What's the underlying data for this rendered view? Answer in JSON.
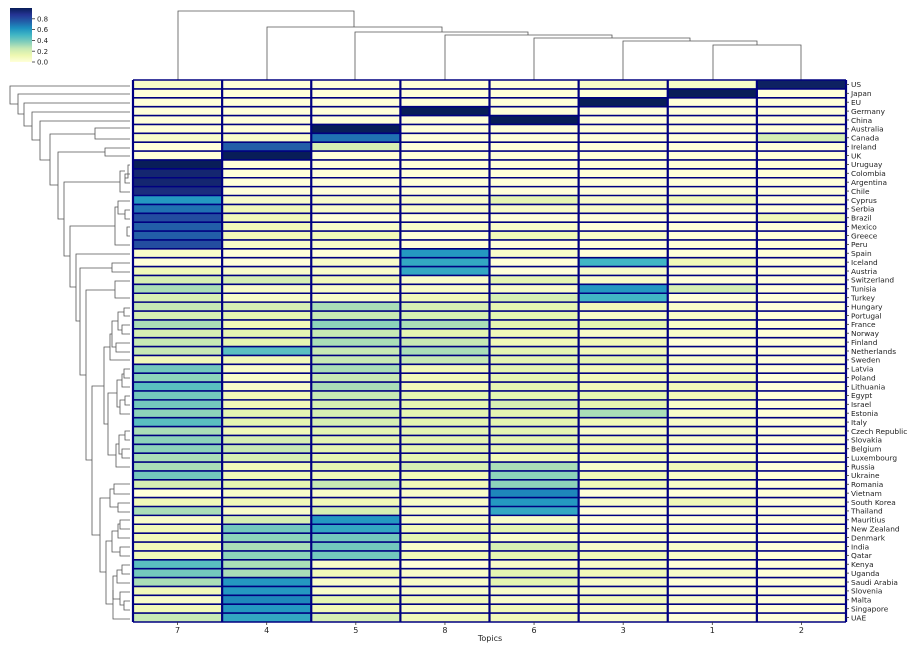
{
  "chart_data": {
    "type": "heatmap",
    "title": "",
    "xlabel": "Topics",
    "ylabel": "",
    "colormap": "YlGnBu",
    "vmin": 0.0,
    "vmax": 1.0,
    "colorbar_ticks": [
      "0.0",
      "0.2",
      "0.4",
      "0.6",
      "0.8"
    ],
    "colorbar_tick_values": [
      0.0,
      0.2,
      0.4,
      0.6,
      0.8
    ],
    "cell_border_color": "#000080",
    "columns": [
      "7",
      "4",
      "5",
      "8",
      "6",
      "3",
      "1",
      "2"
    ],
    "rows": [
      "US",
      "Japan",
      "EU",
      "Germany",
      "China",
      "Australia",
      "Canada",
      "Ireland",
      "UK",
      "Uruguay",
      "Colombia",
      "Argentina",
      "Chile",
      "Cyprus",
      "Serbia",
      "Brazil",
      "Mexico",
      "Greece",
      "Peru",
      "Spain",
      "Iceland",
      "Austria",
      "Switzerland",
      "Tunisia",
      "Turkey",
      "Hungary",
      "Portugal",
      "France",
      "Norway",
      "Finland",
      "Netherlands",
      "Sweden",
      "Latvia",
      "Poland",
      "Lithuania",
      "Egypt",
      "Israel",
      "Estonia",
      "Italy",
      "Czech Republic",
      "Slovakia",
      "Belgium",
      "Luxembourg",
      "Russia",
      "Ukraine",
      "Romania",
      "Vietnam",
      "South Korea",
      "Thailand",
      "Mauritius",
      "New Zealand",
      "Denmark",
      "India",
      "Qatar",
      "Kenya",
      "Uganda",
      "Saudi Arabia",
      "Slovenia",
      "Malta",
      "Singapore",
      "UAE"
    ],
    "values": [
      [
        0.05,
        0.0,
        0.0,
        0.0,
        0.0,
        0.05,
        0.05,
        0.98
      ],
      [
        0.0,
        0.0,
        0.0,
        0.0,
        0.0,
        0.0,
        1.0,
        0.0
      ],
      [
        0.0,
        0.0,
        0.0,
        0.0,
        0.0,
        1.0,
        0.0,
        0.0
      ],
      [
        0.0,
        0.0,
        0.0,
        1.0,
        0.0,
        0.0,
        0.0,
        0.0
      ],
      [
        0.0,
        0.0,
        0.0,
        0.0,
        1.0,
        0.0,
        0.0,
        0.0
      ],
      [
        0.0,
        0.0,
        1.0,
        0.0,
        0.0,
        0.0,
        0.0,
        0.0
      ],
      [
        0.05,
        0.05,
        0.7,
        0.0,
        0.0,
        0.0,
        0.0,
        0.2
      ],
      [
        0.0,
        0.75,
        0.2,
        0.0,
        0.0,
        0.0,
        0.0,
        0.0
      ],
      [
        0.0,
        1.0,
        0.0,
        0.0,
        0.0,
        0.0,
        0.0,
        0.0
      ],
      [
        1.0,
        0.0,
        0.0,
        0.0,
        0.0,
        0.0,
        0.0,
        0.0
      ],
      [
        0.95,
        0.0,
        0.0,
        0.0,
        0.0,
        0.0,
        0.0,
        0.0
      ],
      [
        0.95,
        0.0,
        0.0,
        0.0,
        0.0,
        0.0,
        0.0,
        0.0
      ],
      [
        0.92,
        0.0,
        0.0,
        0.0,
        0.0,
        0.0,
        0.0,
        0.0
      ],
      [
        0.6,
        0.05,
        0.05,
        0.05,
        0.15,
        0.05,
        0.1,
        0.0
      ],
      [
        0.7,
        0.1,
        0.05,
        0.05,
        0.05,
        0.05,
        0.0,
        0.0
      ],
      [
        0.8,
        0.1,
        0.0,
        0.0,
        0.0,
        0.0,
        0.0,
        0.1
      ],
      [
        0.75,
        0.1,
        0.05,
        0.05,
        0.05,
        0.0,
        0.0,
        0.0
      ],
      [
        0.75,
        0.1,
        0.1,
        0.0,
        0.1,
        0.05,
        0.0,
        0.0
      ],
      [
        0.8,
        0.05,
        0.05,
        0.0,
        0.0,
        0.0,
        0.0,
        0.0
      ],
      [
        0.05,
        0.0,
        0.0,
        0.6,
        0.05,
        0.0,
        0.0,
        0.0
      ],
      [
        0.0,
        0.0,
        0.05,
        0.55,
        0.0,
        0.5,
        0.1,
        0.0
      ],
      [
        0.1,
        0.05,
        0.05,
        0.55,
        0.0,
        0.05,
        0.0,
        0.0
      ],
      [
        0.2,
        0.2,
        0.1,
        0.05,
        0.15,
        0.05,
        0.0,
        0.0
      ],
      [
        0.3,
        0.05,
        0.05,
        0.05,
        0.05,
        0.6,
        0.2,
        0.0
      ],
      [
        0.2,
        0.05,
        0.05,
        0.1,
        0.2,
        0.5,
        0.0,
        0.0
      ],
      [
        0.25,
        0.2,
        0.3,
        0.2,
        0.15,
        0.1,
        0.05,
        0.0
      ],
      [
        0.2,
        0.15,
        0.25,
        0.2,
        0.15,
        0.05,
        0.05,
        0.0
      ],
      [
        0.3,
        0.1,
        0.35,
        0.3,
        0.15,
        0.15,
        0.05,
        0.0
      ],
      [
        0.2,
        0.15,
        0.25,
        0.15,
        0.1,
        0.05,
        0.05,
        0.0
      ],
      [
        0.25,
        0.15,
        0.3,
        0.25,
        0.1,
        0.1,
        0.0,
        0.0
      ],
      [
        0.25,
        0.45,
        0.25,
        0.3,
        0.15,
        0.1,
        0.0,
        0.0
      ],
      [
        0.1,
        0.1,
        0.25,
        0.25,
        0.15,
        0.15,
        0.05,
        0.0
      ],
      [
        0.4,
        0.05,
        0.3,
        0.1,
        0.15,
        0.1,
        0.05,
        0.0
      ],
      [
        0.35,
        0.05,
        0.25,
        0.1,
        0.15,
        0.1,
        0.1,
        0.0
      ],
      [
        0.45,
        0.05,
        0.3,
        0.1,
        0.15,
        0.1,
        0.1,
        0.0
      ],
      [
        0.4,
        0.1,
        0.25,
        0.15,
        0.15,
        0.15,
        0.1,
        0.0
      ],
      [
        0.4,
        0.1,
        0.2,
        0.15,
        0.2,
        0.15,
        0.05,
        0.0
      ],
      [
        0.35,
        0.15,
        0.2,
        0.15,
        0.15,
        0.3,
        0.05,
        0.0
      ],
      [
        0.45,
        0.15,
        0.2,
        0.15,
        0.15,
        0.1,
        0.05,
        0.0
      ],
      [
        0.3,
        0.1,
        0.15,
        0.15,
        0.15,
        0.05,
        0.05,
        0.0
      ],
      [
        0.35,
        0.2,
        0.15,
        0.15,
        0.15,
        0.1,
        0.05,
        0.0
      ],
      [
        0.35,
        0.25,
        0.15,
        0.15,
        0.15,
        0.1,
        0.05,
        0.0
      ],
      [
        0.3,
        0.2,
        0.15,
        0.15,
        0.1,
        0.1,
        0.05,
        0.0
      ],
      [
        0.3,
        0.1,
        0.15,
        0.2,
        0.3,
        0.05,
        0.1,
        0.0
      ],
      [
        0.4,
        0.1,
        0.1,
        0.1,
        0.35,
        0.1,
        0.05,
        0.0
      ],
      [
        0.2,
        0.15,
        0.25,
        0.1,
        0.35,
        0.1,
        0.05,
        0.0
      ],
      [
        0.0,
        0.05,
        0.05,
        0.05,
        0.65,
        0.0,
        0.0,
        0.0
      ],
      [
        0.1,
        0.1,
        0.1,
        0.05,
        0.6,
        0.05,
        0.1,
        0.0
      ],
      [
        0.3,
        0.05,
        0.2,
        0.05,
        0.55,
        0.0,
        0.0,
        0.0
      ],
      [
        0.05,
        0.2,
        0.6,
        0.05,
        0.05,
        0.0,
        0.0,
        0.0
      ],
      [
        0.1,
        0.4,
        0.55,
        0.1,
        0.15,
        0.05,
        0.05,
        0.0
      ],
      [
        0.1,
        0.35,
        0.4,
        0.15,
        0.05,
        0.05,
        0.0,
        0.0
      ],
      [
        0.1,
        0.3,
        0.4,
        0.05,
        0.2,
        0.05,
        0.05,
        0.0
      ],
      [
        0.1,
        0.35,
        0.4,
        0.1,
        0.15,
        0.1,
        0.05,
        0.0
      ],
      [
        0.45,
        0.3,
        0.05,
        0.0,
        0.05,
        0.05,
        0.0,
        0.0
      ],
      [
        0.4,
        0.3,
        0.1,
        0.05,
        0.15,
        0.1,
        0.05,
        0.0
      ],
      [
        0.3,
        0.6,
        0.05,
        0.05,
        0.15,
        0.05,
        0.0,
        0.0
      ],
      [
        0.1,
        0.6,
        0.05,
        0.05,
        0.05,
        0.05,
        0.0,
        0.0
      ],
      [
        0.05,
        0.65,
        0.15,
        0.1,
        0.05,
        0.1,
        0.05,
        0.0
      ],
      [
        0.1,
        0.6,
        0.1,
        0.05,
        0.1,
        0.05,
        0.0,
        0.0
      ],
      [
        0.25,
        0.55,
        0.2,
        0.1,
        0.1,
        0.05,
        0.0,
        0.0
      ]
    ]
  }
}
